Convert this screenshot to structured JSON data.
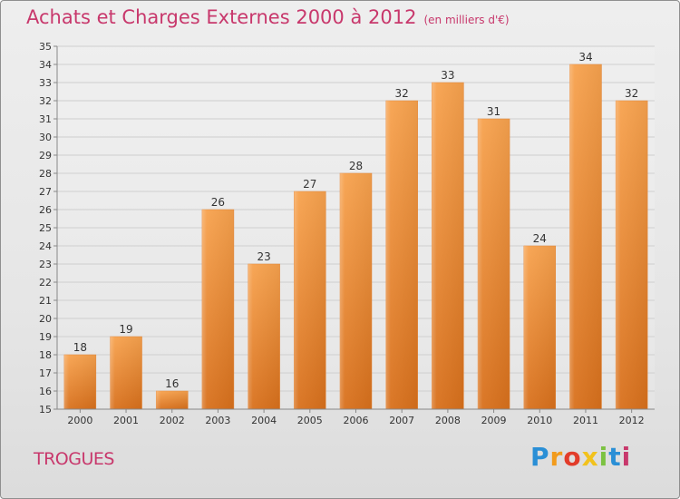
{
  "title": "Achats et Charges Externes 2000 à 2012",
  "subtitle": "(en milliers d'€)",
  "commune": "TROGUES",
  "logo": {
    "letters": [
      "P",
      "r",
      "o",
      "x",
      "i",
      "t",
      "i"
    ],
    "colors": [
      "#2a8fd6",
      "#f29b1c",
      "#e23c2a",
      "#f2c21c",
      "#7cc242",
      "#2a8fd6",
      "#c8386c"
    ]
  },
  "colors": {
    "bar_top": "#f7a24e",
    "bar_bottom": "#d8701c",
    "title": "#c8386c",
    "grid": "#cfcfcf",
    "axis_text": "#333333"
  },
  "chart_data": {
    "type": "bar",
    "categories": [
      "2000",
      "2001",
      "2002",
      "2003",
      "2004",
      "2005",
      "2006",
      "2007",
      "2008",
      "2009",
      "2010",
      "2011",
      "2012"
    ],
    "values": [
      18,
      19,
      16,
      26,
      23,
      27,
      28,
      32,
      33,
      31,
      24,
      34,
      32
    ],
    "ylim": [
      15,
      35
    ],
    "yticks": [
      15,
      16,
      17,
      18,
      19,
      20,
      21,
      22,
      23,
      24,
      25,
      26,
      27,
      28,
      29,
      30,
      31,
      32,
      33,
      34,
      35
    ],
    "grid": true,
    "data_labels": true
  }
}
